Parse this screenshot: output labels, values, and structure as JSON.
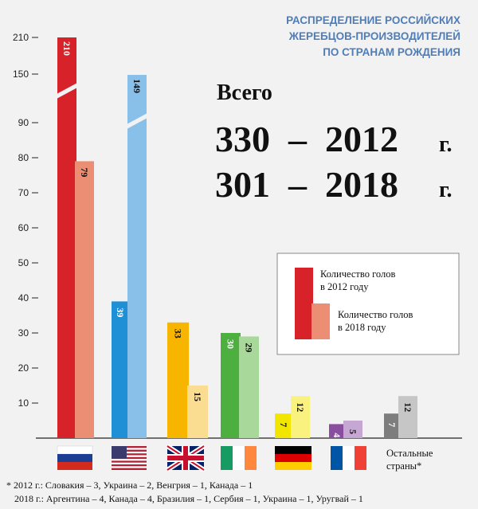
{
  "title": [
    "РАСПРЕДЕЛЕНИЕ РОССИЙСКИХ",
    "ЖЕРЕБЦОВ-ПРОИЗВОДИТЕЛЕЙ",
    "ПО СТРАНАМ РОЖДЕНИЯ"
  ],
  "total": {
    "heading": "Всего",
    "line_2012": "330  –  2012",
    "line_2018": "301  –  2018",
    "suffix": "г."
  },
  "legend": {
    "item_2012": [
      "Количество голов",
      "в 2012 году"
    ],
    "item_2018": [
      "Количество голов",
      "в 2018 году"
    ]
  },
  "others_label": [
    "Остальные",
    "страны*"
  ],
  "footnote": [
    "* 2012 г.: Словакия – 3, Украина – 2, Венгрия – 1, Канада – 1",
    "2018 г.: Аргентина – 4, Канада – 4, Бразилия – 1, Сербия – 1, Украина – 1, Уругвай – 1"
  ],
  "chart_data": {
    "type": "bar",
    "title": "РАСПРЕДЕЛЕНИЕ РОССИЙСКИХ ЖЕРЕБЦОВ-ПРОИЗВОДИТЕЛЕЙ ПО СТРАНАМ РОЖДЕНИЯ",
    "categories": [
      "Russia",
      "USA",
      "United Kingdom",
      "Ireland",
      "Germany",
      "France",
      "Остальные страны*"
    ],
    "category_icons": [
      "flag-russia",
      "flag-usa",
      "flag-uk",
      "flag-ireland",
      "flag-germany",
      "flag-france",
      ""
    ],
    "series": [
      {
        "name": "Количество голов в 2012 году",
        "values": [
          210,
          39,
          33,
          30,
          7,
          4,
          7
        ]
      },
      {
        "name": "Количество голов в 2018 году",
        "values": [
          79,
          149,
          15,
          29,
          12,
          5,
          12
        ]
      }
    ],
    "colors_2012": [
      "#d7222a",
      "#1f8fd6",
      "#f7b500",
      "#4caf3f",
      "#f2e600",
      "#8a4ea0",
      "#7d7d7d"
    ],
    "colors_2018": [
      "#ec8e74",
      "#88c0ea",
      "#fbdd92",
      "#a8d99a",
      "#faf27e",
      "#c6a6d3",
      "#c6c6c6"
    ],
    "y_axis": {
      "ticks": [
        10,
        20,
        30,
        40,
        50,
        60,
        70,
        80,
        90,
        150,
        210
      ],
      "broken": true
    },
    "xlabel": "",
    "ylabel": "",
    "grid": false,
    "legend_position": "right-middle"
  }
}
